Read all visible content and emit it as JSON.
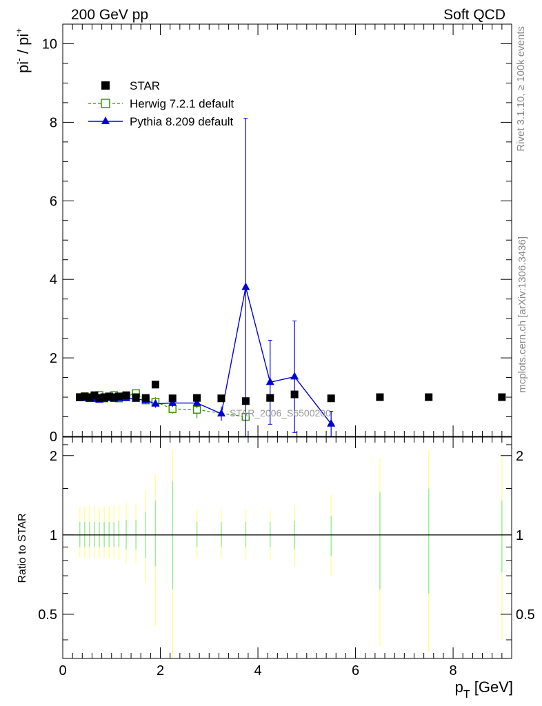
{
  "header": {
    "left": "200 GeV pp",
    "right": "Soft QCD"
  },
  "side_text": {
    "rivet": "Rivet 3.1.10, ≥ 100k events",
    "mcplots": "mcplots.cern.ch [arXiv:1306.3436]"
  },
  "analysis_label": "STAR_2006_S6500200",
  "colors": {
    "star": "#000000",
    "herwig": "#339900",
    "pythia": "#0000dd",
    "band_inner": "#99ee99",
    "band_outer": "#ffff99"
  },
  "chart_data": [
    {
      "type": "scatter",
      "panel": "main",
      "ylabel_main": "pi",
      "ylabel_sup1": "-",
      "ylabel_sep": " / pi",
      "ylabel_sup2": "+",
      "xlim": [
        0,
        9.2
      ],
      "ylim": [
        0,
        10.5
      ],
      "yticks": [
        0,
        2,
        4,
        6,
        8,
        10
      ],
      "legend_position": "top-left",
      "series": [
        {
          "name": "STAR",
          "marker": "filled-square",
          "x": [
            0.35,
            0.45,
            0.55,
            0.65,
            0.75,
            0.85,
            0.95,
            1.05,
            1.15,
            1.3,
            1.5,
            1.7,
            1.9,
            2.25,
            2.75,
            3.25,
            3.75,
            4.25,
            4.75,
            5.5,
            6.5,
            7.5,
            9.0
          ],
          "y": [
            1.0,
            1.02,
            1.0,
            1.05,
            0.98,
            1.0,
            1.02,
            1.0,
            1.02,
            1.05,
            1.0,
            0.98,
            1.32,
            0.97,
            0.98,
            0.97,
            0.9,
            0.98,
            1.07,
            0.97,
            1.0,
            1.0,
            1.0
          ]
        },
        {
          "name": "Herwig 7.2.1 default",
          "marker": "open-square",
          "line": "dashed",
          "x": [
            0.35,
            0.45,
            0.55,
            0.65,
            0.75,
            0.85,
            0.95,
            1.05,
            1.15,
            1.3,
            1.5,
            1.7,
            1.9,
            2.25,
            2.75,
            3.75
          ],
          "y": [
            1.0,
            1.02,
            0.98,
            1.02,
            1.05,
            0.97,
            1.0,
            1.05,
            0.97,
            1.02,
            1.1,
            0.92,
            0.88,
            0.7,
            0.68,
            0.5
          ],
          "yerr": [
            0.05,
            0.05,
            0.05,
            0.05,
            0.05,
            0.05,
            0.05,
            0.06,
            0.06,
            0.06,
            0.08,
            0.1,
            0.12,
            0.12,
            0.22,
            0.1
          ]
        },
        {
          "name": "Pythia 8.209 default",
          "marker": "filled-triangle",
          "line": "solid",
          "x": [
            0.35,
            0.45,
            0.55,
            0.65,
            0.75,
            0.85,
            0.95,
            1.05,
            1.15,
            1.3,
            1.5,
            1.7,
            1.9,
            2.25,
            2.75,
            3.25,
            3.75,
            4.25,
            4.75,
            5.5
          ],
          "y": [
            0.97,
            0.97,
            0.95,
            0.95,
            0.93,
            0.95,
            0.98,
            0.95,
            0.97,
            0.97,
            0.95,
            0.92,
            0.83,
            0.85,
            0.85,
            0.58,
            3.8,
            1.38,
            1.52,
            0.32
          ],
          "yerr": [
            0.05,
            0.05,
            0.05,
            0.05,
            0.05,
            0.05,
            0.05,
            0.05,
            0.06,
            0.06,
            0.07,
            0.08,
            0.1,
            0.1,
            0.12,
            0.18,
            4.3,
            1.07,
            1.42,
            0.32
          ]
        }
      ]
    },
    {
      "type": "bar",
      "panel": "ratio",
      "ylabel": "Ratio to STAR",
      "xlabel": "p",
      "xlabel_sub": "T",
      "xlabel_unit": " [GeV]",
      "xlim": [
        0,
        9.2
      ],
      "ylim": [
        0.34,
        2.35
      ],
      "ylog": true,
      "yticks": [
        0.5,
        1,
        2
      ],
      "ytick_labels": [
        "0.5",
        "1",
        "2"
      ],
      "xticks": [
        0,
        2,
        4,
        6,
        8
      ],
      "xtick_labels": [
        "0",
        "2",
        "4",
        "6",
        "8"
      ],
      "reference": 1,
      "bands": {
        "x": [
          0.35,
          0.45,
          0.55,
          0.65,
          0.75,
          0.85,
          0.95,
          1.05,
          1.15,
          1.3,
          1.5,
          1.7,
          1.9,
          2.25,
          2.75,
          3.25,
          3.75,
          4.25,
          4.75,
          5.5,
          6.5,
          7.5,
          9.0
        ],
        "inner_low": [
          0.9,
          0.9,
          0.9,
          0.9,
          0.9,
          0.9,
          0.9,
          0.9,
          0.9,
          0.88,
          0.88,
          0.82,
          0.76,
          0.62,
          0.9,
          0.9,
          0.9,
          0.9,
          0.88,
          0.83,
          0.62,
          0.6,
          0.72
        ],
        "inner_high": [
          1.12,
          1.12,
          1.12,
          1.12,
          1.12,
          1.12,
          1.12,
          1.12,
          1.13,
          1.14,
          1.14,
          1.22,
          1.35,
          1.6,
          1.12,
          1.12,
          1.12,
          1.12,
          1.13,
          1.18,
          1.45,
          1.5,
          1.35
        ],
        "outer_low": [
          0.82,
          0.82,
          0.82,
          0.82,
          0.82,
          0.82,
          0.82,
          0.81,
          0.8,
          0.78,
          0.78,
          0.66,
          0.45,
          0.34,
          0.82,
          0.82,
          0.8,
          0.8,
          0.76,
          0.7,
          0.38,
          0.36,
          0.4
        ],
        "outer_high": [
          1.28,
          1.28,
          1.28,
          1.28,
          1.28,
          1.28,
          1.28,
          1.29,
          1.3,
          1.32,
          1.32,
          1.48,
          1.7,
          2.1,
          1.25,
          1.25,
          1.25,
          1.25,
          1.3,
          1.42,
          1.95,
          2.1,
          2.0
        ]
      }
    }
  ]
}
